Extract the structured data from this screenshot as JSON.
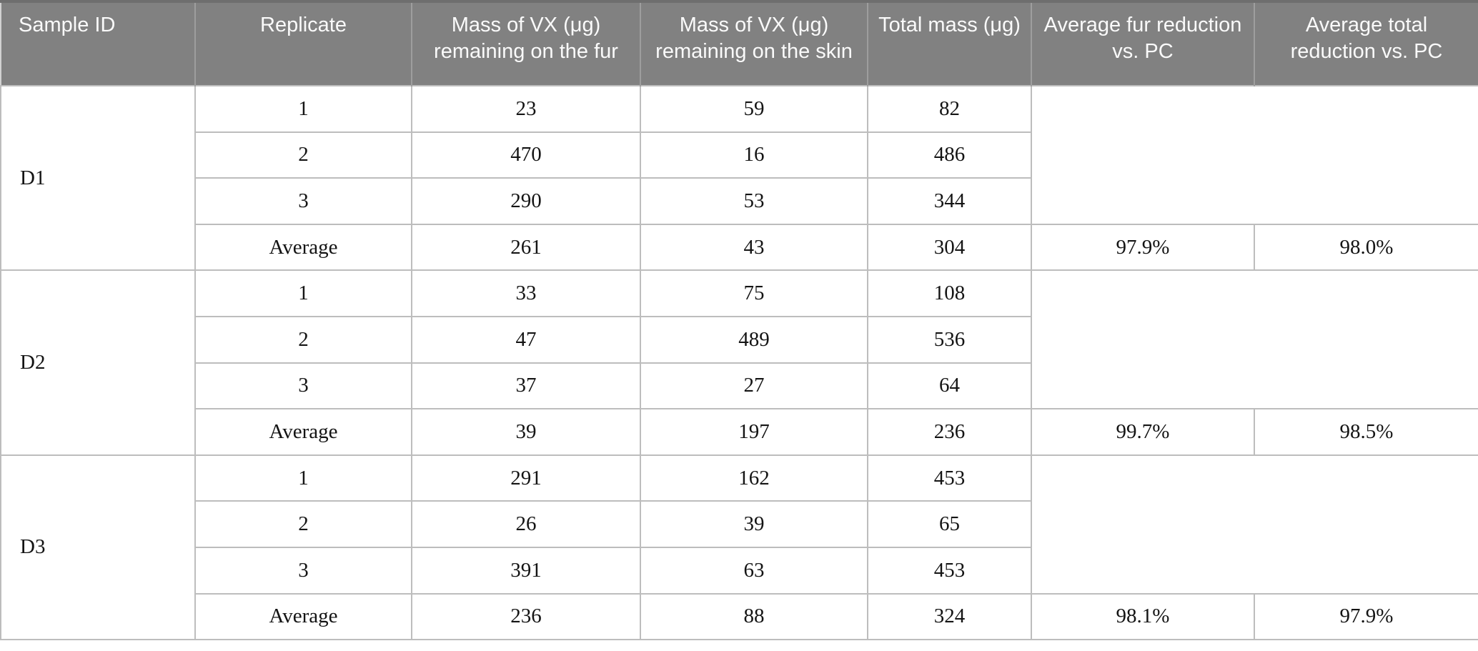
{
  "colors": {
    "header_background": "#818181",
    "header_text": "#fafafa",
    "header_divider": "#9e9e9e",
    "header_top_edge": "#6e6e6e",
    "grid_border": "#bdbdbd",
    "body_text": "#141414",
    "page_background": "#ffffff"
  },
  "table": {
    "headers": [
      "Sample ID",
      "Replicate",
      "Mass of VX (μg) remaining on the fur",
      "Mass of VX (μg) remaining on the skin",
      "Total mass (μg)",
      "Average fur reduction vs. PC",
      "Average total reduction vs. PC"
    ],
    "average_label": "Average",
    "groups": [
      {
        "sample_id": "D1",
        "replicates": [
          {
            "replicate": "1",
            "fur": "23",
            "skin": "59",
            "total": "82"
          },
          {
            "replicate": "2",
            "fur": "470",
            "skin": "16",
            "total": "486"
          },
          {
            "replicate": "3",
            "fur": "290",
            "skin": "53",
            "total": "344"
          }
        ],
        "average": {
          "fur": "261",
          "skin": "43",
          "total": "304",
          "fur_reduction_vs_pc": "97.9%",
          "total_reduction_vs_pc": "98.0%"
        }
      },
      {
        "sample_id": "D2",
        "replicates": [
          {
            "replicate": "1",
            "fur": "33",
            "skin": "75",
            "total": "108"
          },
          {
            "replicate": "2",
            "fur": "47",
            "skin": "489",
            "total": "536"
          },
          {
            "replicate": "3",
            "fur": "37",
            "skin": "27",
            "total": "64"
          }
        ],
        "average": {
          "fur": "39",
          "skin": "197",
          "total": "236",
          "fur_reduction_vs_pc": "99.7%",
          "total_reduction_vs_pc": "98.5%"
        }
      },
      {
        "sample_id": "D3",
        "replicates": [
          {
            "replicate": "1",
            "fur": "291",
            "skin": "162",
            "total": "453"
          },
          {
            "replicate": "2",
            "fur": "26",
            "skin": "39",
            "total": "65"
          },
          {
            "replicate": "3",
            "fur": "391",
            "skin": "63",
            "total": "453"
          }
        ],
        "average": {
          "fur": "236",
          "skin": "88",
          "total": "324",
          "fur_reduction_vs_pc": "98.1%",
          "total_reduction_vs_pc": "97.9%"
        }
      }
    ]
  }
}
